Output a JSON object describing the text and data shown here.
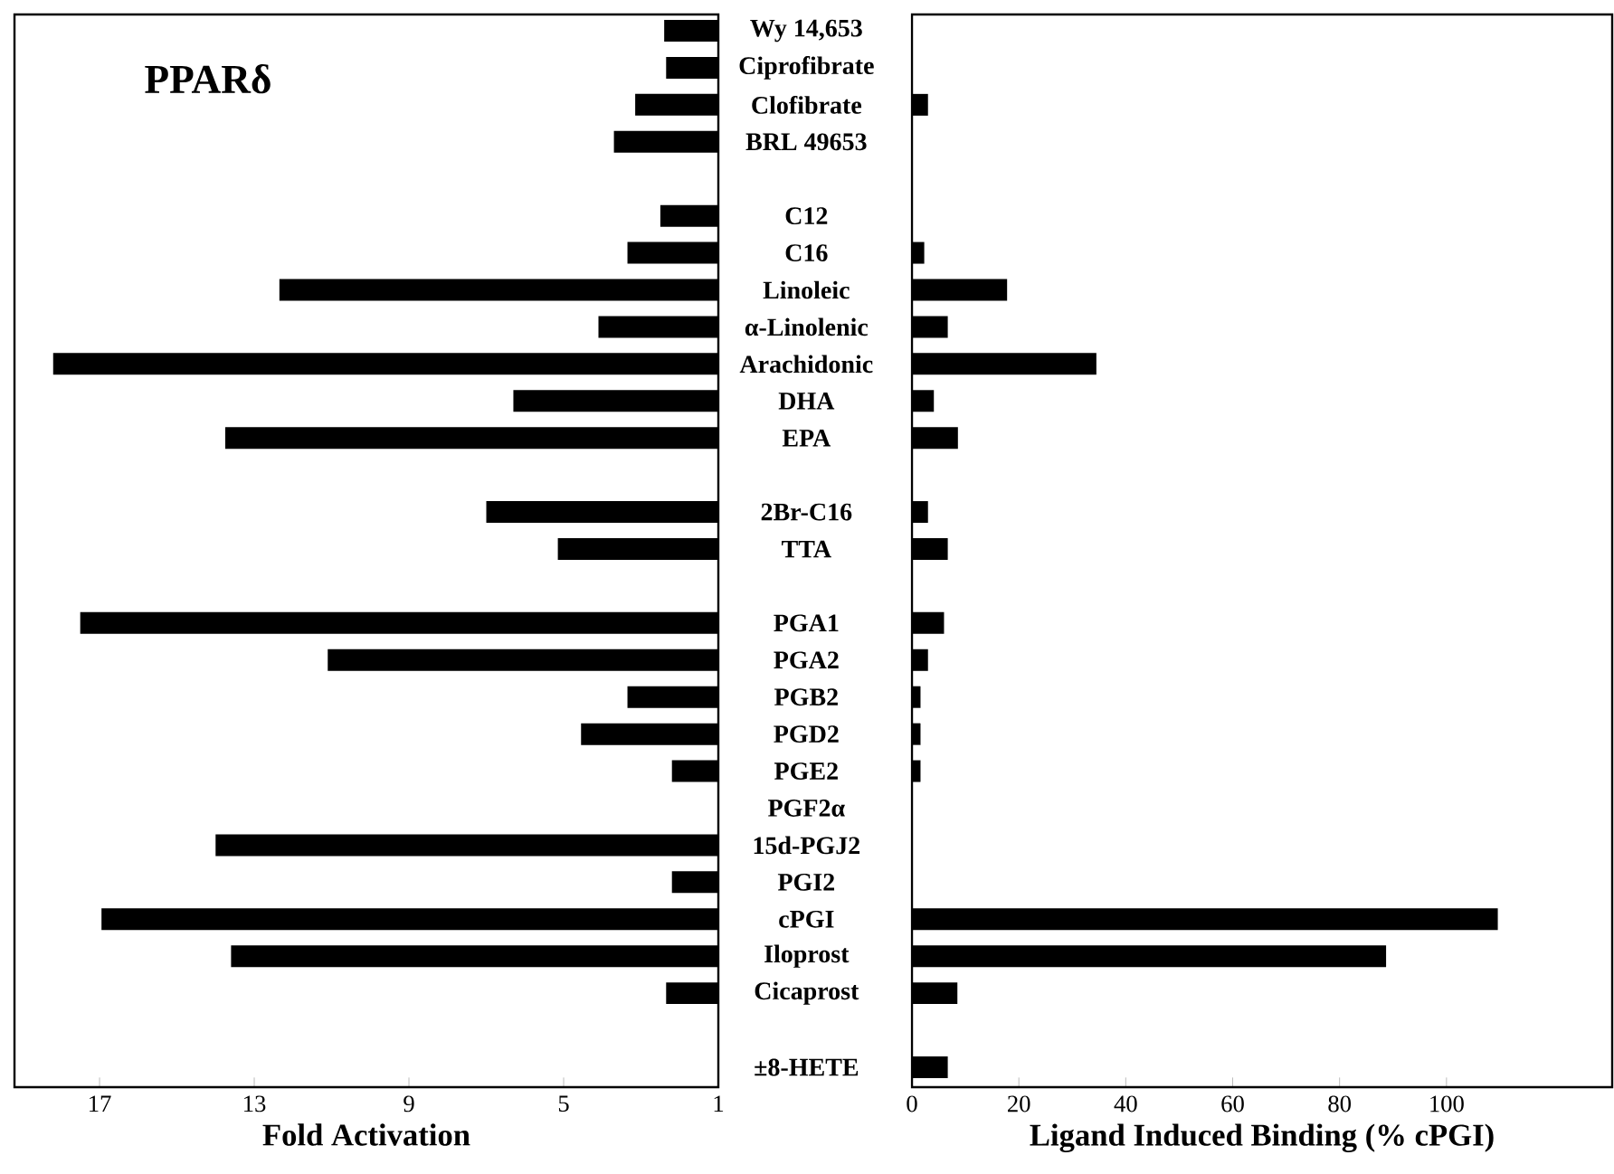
{
  "chart_data": [
    {
      "type": "bar",
      "orientation": "horizontal",
      "title": "PPARδ",
      "xlabel": "Fold Activation",
      "categories": [
        "Wy 14,653",
        "Ciprofibrate",
        "Clofibrate",
        "BRL 49653",
        null,
        "C12",
        "C16",
        "Linoleic",
        "α-Linolenic",
        "Arachidonic",
        "DHA",
        "EPA",
        null,
        "2Br-C16",
        "TTA",
        null,
        "PGA1",
        "PGA2",
        "PGB2",
        "PGD2",
        "PGE2",
        "PGF2α",
        "15d-PGJ2",
        "PGI2",
        "cPGI",
        "Iloprost",
        "Cicaprost",
        null,
        "±8-HETE"
      ],
      "values": [
        2.4,
        2.35,
        3.15,
        3.7,
        null,
        2.5,
        3.35,
        12.35,
        4.1,
        18.2,
        6.3,
        13.75,
        null,
        7.0,
        5.15,
        null,
        17.5,
        11.1,
        3.35,
        4.55,
        2.2,
        null,
        14.0,
        2.2,
        16.95,
        13.6,
        2.35,
        null,
        null
      ],
      "color": "#000000",
      "xlim": [
        19.2,
        1
      ],
      "xticks": [
        17,
        13,
        9,
        5,
        1
      ]
    },
    {
      "type": "bar",
      "orientation": "horizontal",
      "xlabel": "Ligand Induced Binding (% cPGI)",
      "categories": [
        null,
        null,
        null,
        null,
        null,
        null,
        null,
        null,
        null,
        null,
        null,
        null,
        null,
        null,
        null,
        null,
        null,
        null,
        null,
        null,
        null,
        null,
        null,
        null,
        null,
        null,
        null,
        null,
        null
      ],
      "values": [
        null,
        null,
        3.0,
        null,
        null,
        null,
        2.3,
        17.8,
        6.7,
        34.5,
        4.1,
        8.6,
        null,
        3.0,
        6.7,
        null,
        6.0,
        3.0,
        1.6,
        1.6,
        1.6,
        null,
        null,
        null,
        109.6,
        88.7,
        8.5,
        null,
        6.7
      ],
      "color": "#000000",
      "xlim": [
        0,
        131
      ],
      "xticks": [
        0,
        20,
        40,
        60,
        80,
        100
      ],
      "tick_labels": "x"
    }
  ]
}
